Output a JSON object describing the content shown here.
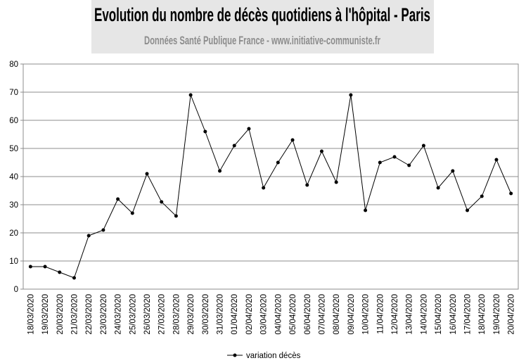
{
  "chart_data": {
    "type": "line",
    "title": "Evolution du nombre de décès quotidiens  à l'hôpital - Paris",
    "subtitle": "Données Santé Publique France - www.initiative-communiste.fr",
    "categories": [
      "18/03/2020",
      "19/03/2020",
      "20/03/2020",
      "21/03/2020",
      "22/03/2020",
      "23/03/2020",
      "24/03/2020",
      "25/03/2020",
      "26/03/2020",
      "27/03/2020",
      "28/03/2020",
      "29/03/2020",
      "30/03/2020",
      "31/03/2020",
      "01/04/2020",
      "02/04/2020",
      "03/04/2020",
      "04/04/2020",
      "05/04/2020",
      "06/04/2020",
      "07/04/2020",
      "08/04/2020",
      "09/04/2020",
      "10/04/2020",
      "11/04/2020",
      "12/04/2020",
      "13/04/2020",
      "14/04/2020",
      "15/04/2020",
      "16/04/2020",
      "17/04/2020",
      "18/04/2020",
      "19/04/2020",
      "20/04/2020"
    ],
    "series": [
      {
        "name": "variation décès",
        "color": "#000000",
        "values": [
          8,
          8,
          6,
          4,
          19,
          21,
          32,
          27,
          41,
          31,
          26,
          69,
          56,
          42,
          51,
          57,
          36,
          45,
          53,
          37,
          49,
          38,
          69,
          28,
          45,
          47,
          44,
          51,
          36,
          42,
          28,
          33,
          46,
          34
        ]
      }
    ],
    "ylim": [
      0,
      80
    ],
    "yticks": [
      0,
      10,
      20,
      30,
      40,
      50,
      60,
      70,
      80
    ],
    "grid": true,
    "legend": "bottom"
  }
}
